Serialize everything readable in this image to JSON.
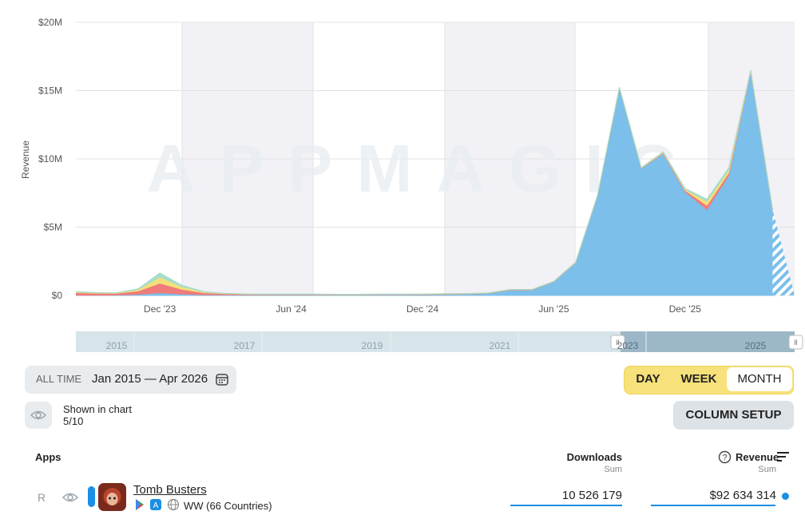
{
  "chart_data": {
    "type": "area",
    "stacked": true,
    "y_label": "Revenue",
    "watermark": "APPMAGIC",
    "categories": [
      null,
      null,
      null,
      null,
      "Dec '23",
      null,
      null,
      null,
      null,
      null,
      "Jun '24",
      null,
      null,
      null,
      null,
      null,
      "Dec '24",
      null,
      null,
      null,
      null,
      null,
      "Jun '25",
      null,
      null,
      null,
      null,
      null,
      "Dec '25",
      null,
      null,
      null,
      null
    ],
    "series": [
      {
        "name": "Tomb Busters",
        "color": "#7bbfea",
        "values": [
          20000,
          20000,
          30000,
          80000,
          200000,
          100000,
          50000,
          40000,
          40000,
          40000,
          40000,
          40000,
          40000,
          40000,
          50000,
          50000,
          60000,
          80000,
          100000,
          150000,
          400000,
          400000,
          1000000,
          2400000,
          7300000,
          15200000,
          9300000,
          10400000,
          7600000,
          6300000,
          8800000,
          16400000,
          6300000
        ]
      },
      {
        "color": "#f07b7b",
        "values": [
          200000,
          150000,
          120000,
          250000,
          700000,
          350000,
          150000,
          80000,
          50000,
          40000,
          40000,
          40000,
          30000,
          30000,
          30000,
          30000,
          30000,
          30000,
          20000,
          20000,
          20000,
          20000,
          20000,
          20000,
          20000,
          30000,
          30000,
          50000,
          100000,
          300000,
          200000,
          50000,
          0
        ]
      },
      {
        "color": "#f3e07a",
        "values": [
          50000,
          30000,
          30000,
          100000,
          450000,
          200000,
          50000,
          20000,
          10000,
          10000,
          10000,
          10000,
          10000,
          10000,
          10000,
          10000,
          10000,
          10000,
          10000,
          10000,
          10000,
          10000,
          10000,
          10000,
          10000,
          10000,
          20000,
          40000,
          80000,
          300000,
          200000,
          50000,
          0
        ]
      },
      {
        "color": "#a8dccb",
        "values": [
          30000,
          20000,
          20000,
          50000,
          300000,
          100000,
          30000,
          10000,
          10000,
          10000,
          10000,
          10000,
          10000,
          10000,
          10000,
          10000,
          10000,
          10000,
          10000,
          10000,
          10000,
          10000,
          10000,
          10000,
          10000,
          10000,
          20000,
          30000,
          60000,
          150000,
          150000,
          0,
          0
        ]
      }
    ],
    "ylim": [
      0,
      20000000
    ],
    "yticks": [
      {
        "value": 0,
        "label": "$0"
      },
      {
        "value": 5000000,
        "label": "$5M"
      },
      {
        "value": 10000000,
        "label": "$10M"
      },
      {
        "value": 15000000,
        "label": "$15M"
      },
      {
        "value": 20000000,
        "label": "$20M"
      }
    ],
    "grid": true
  },
  "timeline": {
    "years": [
      "2015",
      "2017",
      "2019",
      "2021",
      "2023",
      "2025"
    ]
  },
  "controls": {
    "range_label": "ALL TIME",
    "range": "Jan 2015 — Apr 2026",
    "granularity": [
      "DAY",
      "WEEK",
      "MONTH"
    ],
    "selected": "MONTH",
    "shown_label": "Shown in chart",
    "shown_count": "5/10",
    "column_setup": "COLUMN SETUP"
  },
  "table": {
    "columns": [
      {
        "title": "Apps"
      },
      {
        "title": "Downloads",
        "sub": "Sum"
      },
      {
        "title": "Revenue",
        "sub": "Sum"
      }
    ],
    "rows": [
      {
        "rank": "R",
        "app": "Tomb Busters",
        "region": "WW (66 Countries)",
        "downloads": "10 526 179",
        "revenue": "$92 634 314"
      }
    ]
  }
}
